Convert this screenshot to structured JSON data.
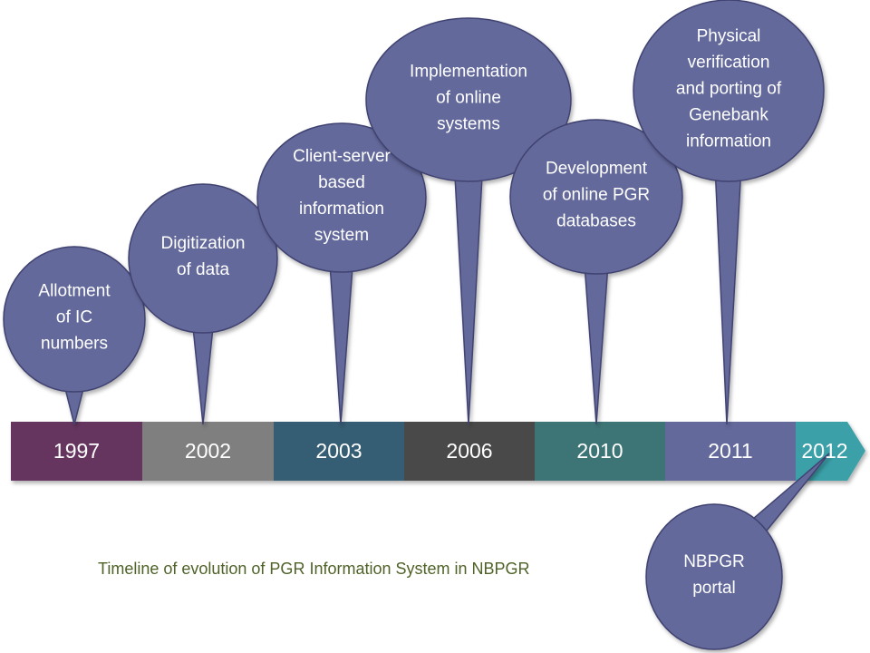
{
  "timeline": {
    "segments": [
      {
        "year": "1997",
        "color": "#65345f"
      },
      {
        "year": "2002",
        "color": "#7f7f7f"
      },
      {
        "year": "2003",
        "color": "#365d73"
      },
      {
        "year": "2006",
        "color": "#484848"
      },
      {
        "year": "2010",
        "color": "#3c7476"
      },
      {
        "year": "2011",
        "color": "#64699b"
      },
      {
        "year": "2012",
        "color": "#3aa0a8"
      }
    ]
  },
  "events": [
    {
      "year": "1997",
      "text": "Allotment\nof IC\nnumbers"
    },
    {
      "year": "2002",
      "text": "Digitization\nof data"
    },
    {
      "year": "2003",
      "text": "Client-server\nbased\ninformation\nsystem"
    },
    {
      "year": "2006",
      "text": "Implementation\nof online\nsystems"
    },
    {
      "year": "2010",
      "text": "Development\nof online PGR\ndatabases"
    },
    {
      "year": "2011",
      "text": "Physical\nverification\nand porting of\nGenebank\ninformation"
    },
    {
      "year": "2012",
      "text": "NBPGR\nportal"
    }
  ],
  "colors": {
    "bubble": "#64699b",
    "bubble_stroke": "#3f4270",
    "caption": "#4f6228"
  },
  "caption": "Timeline of evolution of PGR Information System in NBPGR"
}
